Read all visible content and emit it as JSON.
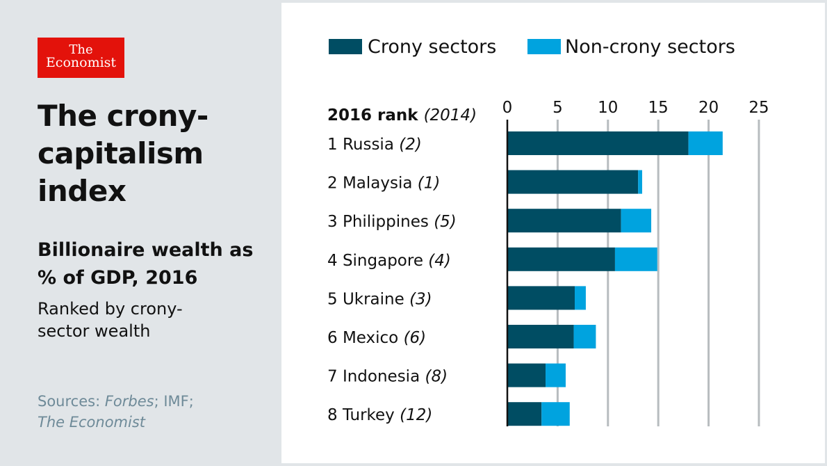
{
  "brand": {
    "line1": "The",
    "line2": "Economist"
  },
  "title_lines": [
    "The crony-",
    "capitalism",
    "index"
  ],
  "subtitle_lines": [
    "Billionaire wealth as",
    "% of GDP, 2016"
  ],
  "note_lines": [
    "Ranked by crony-",
    "sector wealth"
  ],
  "sources": {
    "prefix": "Sources: ",
    "forbes": "Forbes",
    "mid": "; IMF;",
    "economist": "The Economist"
  },
  "colors": {
    "crony": "#004d63",
    "noncrony": "#00a3df",
    "grid": "#b7bcbf",
    "brand": "#e3120b"
  },
  "chart_data": {
    "type": "bar",
    "orientation": "horizontal",
    "stacked": true,
    "title": "The crony-capitalism index",
    "subtitle": "Billionaire wealth as % of GDP, 2016",
    "header": {
      "bold": "2016 rank",
      "italic": "(2014)"
    },
    "legend_position": "top",
    "xlim": [
      0,
      25
    ],
    "xticks": [
      0,
      5,
      10,
      15,
      20,
      25
    ],
    "grid": true,
    "categories": [
      {
        "rank": "1",
        "name": "Russia",
        "prev": "(2)"
      },
      {
        "rank": "2",
        "name": "Malaysia",
        "prev": "(1)"
      },
      {
        "rank": "3",
        "name": "Philippines",
        "prev": "(5)"
      },
      {
        "rank": "4",
        "name": "Singapore",
        "prev": " (4)"
      },
      {
        "rank": "5",
        "name": "Ukraine",
        "prev": "(3)"
      },
      {
        "rank": "6",
        "name": "Mexico",
        "prev": "(6)"
      },
      {
        "rank": "7",
        "name": "Indonesia",
        "prev": "(8)"
      },
      {
        "rank": "8",
        "name": "Turkey",
        "prev": "(12)"
      }
    ],
    "series": [
      {
        "name": "Crony sectors",
        "values": [
          18.0,
          13.0,
          11.3,
          10.7,
          6.7,
          6.6,
          3.8,
          3.4
        ]
      },
      {
        "name": "Non-crony sectors",
        "values": [
          3.4,
          0.4,
          3.0,
          4.2,
          1.1,
          2.2,
          2.0,
          2.8
        ]
      }
    ]
  }
}
